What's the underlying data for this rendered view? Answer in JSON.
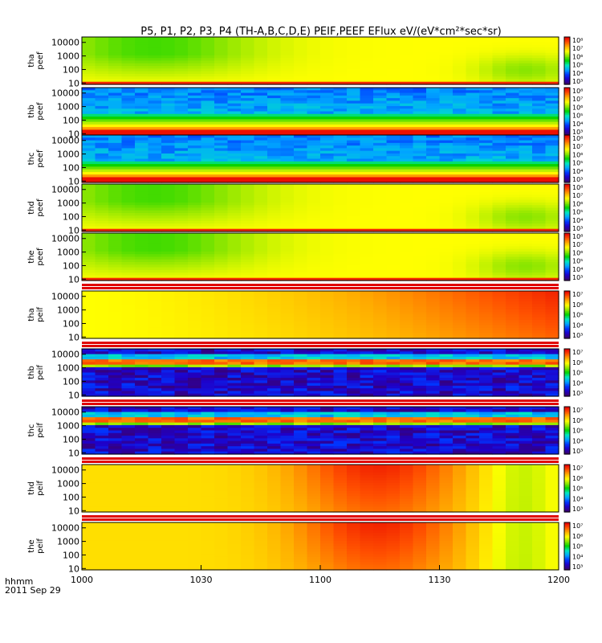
{
  "title": "P5, P1, P2, P3, P4 (TH-A,B,C,D,E) PEIF,PEEF EFlux eV/(eV*cm²*sec*sr)",
  "colors": {
    "rainbow": [
      "#3a006e",
      "#1f00c8",
      "#0036ff",
      "#00a6ff",
      "#00e8c0",
      "#00d200",
      "#8ce600",
      "#ffff00",
      "#ffb000",
      "#ff5000",
      "#e80000"
    ]
  },
  "x_axis": {
    "ticks": [
      "1000",
      "1030",
      "1100",
      "1130",
      "1200"
    ],
    "range_hhmm": [
      "10:00",
      "12:00"
    ],
    "label_line1": "hhmm",
    "label_line2": "2011 Sep 29"
  },
  "chart_data": [
    {
      "type": "heatmap",
      "ylabel": [
        "tha",
        "peef"
      ],
      "yticks": [
        "10000",
        "1000",
        "100",
        "10"
      ],
      "yscale": "log",
      "colorbar_ticks": [
        "10⁸",
        "10⁷",
        "10⁶",
        "10⁵",
        "10⁴",
        "10³"
      ],
      "pattern": "green-yellow"
    },
    {
      "type": "heatmap",
      "ylabel": [
        "thb",
        "peef"
      ],
      "yticks": [
        "10000",
        "1000",
        "100",
        "10"
      ],
      "yscale": "log",
      "colorbar_ticks": [
        "10⁸",
        "10⁷",
        "10⁶",
        "10⁵",
        "10⁴",
        "10³"
      ],
      "pattern": "magnetosheath"
    },
    {
      "type": "heatmap",
      "ylabel": [
        "thc",
        "peef"
      ],
      "yticks": [
        "10000",
        "1000",
        "100",
        "10"
      ],
      "yscale": "log",
      "colorbar_ticks": [
        "10⁸",
        "10⁷",
        "10⁶",
        "10⁵",
        "10⁴",
        "10³"
      ],
      "pattern": "magnetosheath"
    },
    {
      "type": "heatmap",
      "ylabel": [
        "thd",
        "peef"
      ],
      "yticks": [
        "10000",
        "1000",
        "100",
        "10"
      ],
      "yscale": "log",
      "colorbar_ticks": [
        "10⁸",
        "10⁷",
        "10⁶",
        "10⁵",
        "10⁴",
        "10³"
      ],
      "pattern": "green-yellow"
    },
    {
      "type": "heatmap",
      "ylabel": [
        "the",
        "peef"
      ],
      "yticks": [
        "10000",
        "1000",
        "100",
        "10"
      ],
      "yscale": "log",
      "colorbar_ticks": [
        "10⁸",
        "10⁷",
        "10⁶",
        "10⁵",
        "10⁴",
        "10³"
      ],
      "pattern": "green-yellow"
    },
    {
      "type": "heatmap",
      "ylabel": [
        "tha",
        "peif"
      ],
      "yticks": [
        "10000",
        "1000",
        "100",
        "10"
      ],
      "yscale": "log",
      "colorbar_ticks": [
        "10⁷",
        "10⁶",
        "10⁵",
        "10⁴",
        "10³"
      ],
      "pattern": "ion-orange"
    },
    {
      "type": "heatmap",
      "ylabel": [
        "thb",
        "peif"
      ],
      "yticks": [
        "10000",
        "1000",
        "100",
        "10"
      ],
      "yscale": "log",
      "colorbar_ticks": [
        "10⁷",
        "10⁶",
        "10⁵",
        "10⁴",
        "10³"
      ],
      "pattern": "ion-band"
    },
    {
      "type": "heatmap",
      "ylabel": [
        "thc",
        "peif"
      ],
      "yticks": [
        "10000",
        "1000",
        "100",
        "10"
      ],
      "yscale": "log",
      "colorbar_ticks": [
        "10⁷",
        "10⁶",
        "10⁵",
        "10⁴",
        "10³"
      ],
      "pattern": "ion-band"
    },
    {
      "type": "heatmap",
      "ylabel": [
        "thd",
        "peif"
      ],
      "yticks": [
        "10000",
        "1000",
        "100",
        "10"
      ],
      "yscale": "log",
      "colorbar_ticks": [
        "10⁷",
        "10⁶",
        "10⁵",
        "10⁴",
        "10³"
      ],
      "pattern": "ion-orange2"
    },
    {
      "type": "heatmap",
      "ylabel": [
        "the",
        "peif"
      ],
      "yticks": [
        "10000",
        "1000",
        "100",
        "10"
      ],
      "yscale": "log",
      "colorbar_ticks": [
        "10⁷",
        "10⁶",
        "10⁵",
        "10⁴",
        "10³"
      ],
      "pattern": "ion-orange2"
    }
  ]
}
